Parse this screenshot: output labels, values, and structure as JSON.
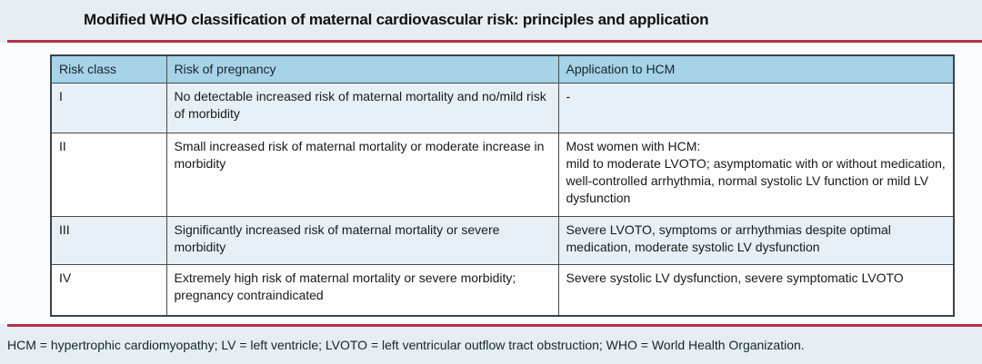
{
  "title": "Modified WHO classification of maternal cardiovascular risk: principles and application",
  "colors": {
    "page_bg": "#e7eef3",
    "content_bg": "#fbfcfd",
    "rule_red": "#b23248",
    "header_bg": "#a6d3e8",
    "stripe_row_bg": "#e7f0f6",
    "plain_row_bg": "#fdfdfd",
    "border": "#444c52",
    "text": "#1a1a1a"
  },
  "table": {
    "headers": [
      "Risk class",
      "Risk of pregnancy",
      "Application to HCM"
    ],
    "rows": [
      {
        "risk_class": "I",
        "risk_of_pregnancy": "No detectable increased risk of maternal mortality and no/mild risk of morbidity",
        "application_to_hcm": "-"
      },
      {
        "risk_class": "II",
        "risk_of_pregnancy": "Small increased risk of maternal mortality or moderate increase in morbidity",
        "application_to_hcm": "Most women with HCM:\nmild to moderate LVOTO; asymptomatic with or without medication, well-controlled arrhythmia, normal systolic LV function or mild LV dysfunction"
      },
      {
        "risk_class": "III",
        "risk_of_pregnancy": "Significantly increased risk of maternal mortality or severe morbidity",
        "application_to_hcm": "Severe LVOTO, symptoms or arrhythmias despite optimal medication, moderate systolic LV dysfunction"
      },
      {
        "risk_class": "IV",
        "risk_of_pregnancy": "Extremely high risk of maternal mortality or severe morbidity; pregnancy contraindicated",
        "application_to_hcm": "Severe systolic LV dysfunction, severe symptomatic LVOTO"
      }
    ]
  },
  "footnote": "HCM = hypertrophic cardiomyopathy; LV = left ventricle; LVOTO = left ventricular outflow tract obstruction; WHO = World Health Organization."
}
